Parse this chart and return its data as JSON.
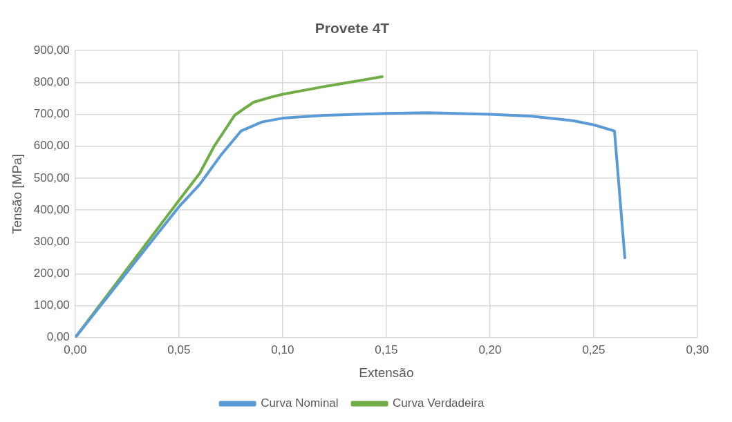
{
  "chart_data": {
    "type": "line",
    "title": "Provete 4T",
    "xlabel": "Extensão",
    "ylabel": "Tensão [MPa]",
    "xlim": [
      0,
      0.3
    ],
    "xticks": [
      {
        "value": 0,
        "label": "0,00"
      },
      {
        "value": 0.05,
        "label": "0,05"
      },
      {
        "value": 0.1,
        "label": "0,10"
      },
      {
        "value": 0.15,
        "label": "0,15"
      },
      {
        "value": 0.2,
        "label": "0,20"
      },
      {
        "value": 0.25,
        "label": "0,25"
      },
      {
        "value": 0.3,
        "label": "0,30"
      }
    ],
    "ylim": [
      0,
      900
    ],
    "yticks": [
      {
        "value": 0,
        "label": "0,00"
      },
      {
        "value": 100,
        "label": "100,00"
      },
      {
        "value": 200,
        "label": "200,00"
      },
      {
        "value": 300,
        "label": "300,00"
      },
      {
        "value": 400,
        "label": "400,00"
      },
      {
        "value": 500,
        "label": "500,00"
      },
      {
        "value": 600,
        "label": "600,00"
      },
      {
        "value": 700,
        "label": "700,00"
      },
      {
        "value": 800,
        "label": "800,00"
      },
      {
        "value": 900,
        "label": "900,00"
      }
    ],
    "grid": true,
    "legend": "bottom",
    "marker": "none",
    "line_style": "solid",
    "series": [
      {
        "name": "Curva Nominal",
        "color": "#5b9bd5",
        "x": [
          0,
          0.05,
          0.06,
          0.07,
          0.08,
          0.09,
          0.1,
          0.12,
          0.15,
          0.17,
          0.2,
          0.22,
          0.24,
          0.25,
          0.26,
          0.265
        ],
        "values": [
          0,
          410,
          480,
          570,
          648,
          676,
          688,
          697,
          703,
          705,
          700,
          694,
          680,
          667,
          648,
          250
        ]
      },
      {
        "name": "Curva Verdadeira",
        "color": "#70ad47",
        "x": [
          0,
          0.05,
          0.06,
          0.067,
          0.077,
          0.086,
          0.095,
          0.1,
          0.12,
          0.148
        ],
        "values": [
          0,
          430,
          515,
          600,
          698,
          738,
          755,
          763,
          787,
          818
        ]
      }
    ]
  }
}
